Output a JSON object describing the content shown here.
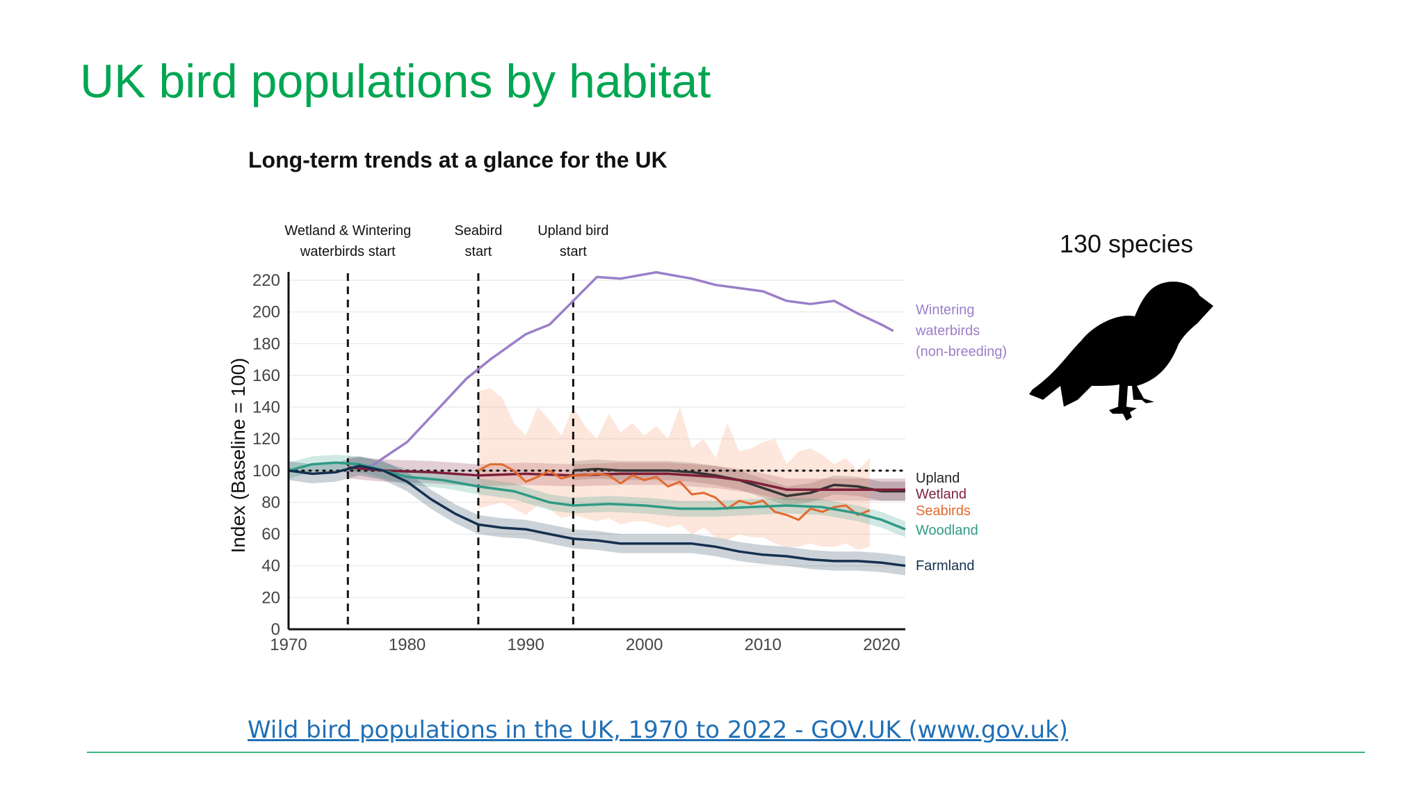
{
  "slide": {
    "title": "UK bird populations by habitat",
    "species_count": "130 species",
    "source_link": "Wild bird populations in the UK, 1970 to 2022 - GOV.UK (www.gov.uk)"
  },
  "colors": {
    "title": "#00a651",
    "link": "#1f6fb5",
    "rule": "#3fb37f"
  },
  "icons": [
    "bird-silhouette-icon"
  ],
  "chart_data": {
    "type": "line",
    "title": "Long-term trends at a glance for the UK",
    "xlabel": "",
    "ylabel": "Index (Baseline = 100)",
    "xlim": [
      1970,
      2022
    ],
    "ylim": [
      0,
      220
    ],
    "xticks": [
      1970,
      1980,
      1990,
      2000,
      2010,
      2020
    ],
    "yticks": [
      0,
      20,
      40,
      60,
      80,
      100,
      120,
      140,
      160,
      180,
      200,
      220
    ],
    "grid": true,
    "baseline": 100,
    "markers": [
      {
        "x": 1975,
        "label": [
          "Wetland & Wintering",
          "waterbirds start"
        ]
      },
      {
        "x": 1986,
        "label": [
          "Seabird",
          "start"
        ]
      },
      {
        "x": 1994,
        "label": [
          "Upland bird",
          "start"
        ]
      }
    ],
    "series": [
      {
        "name": "Wintering waterbirds (non-breeding)",
        "label": [
          "Wintering",
          "waterbirds",
          "(non-breeding)"
        ],
        "color": "#9b7fc9",
        "x": [
          1975,
          1977,
          1980,
          1983,
          1985,
          1987,
          1990,
          1992,
          1994,
          1996,
          1998,
          2001,
          2004,
          2006,
          2008,
          2010,
          2012,
          2014,
          2016,
          2018,
          2020,
          2021
        ],
        "y": [
          101,
          103,
          118,
          142,
          158,
          170,
          186,
          192,
          207,
          222,
          221,
          225,
          221,
          217,
          215,
          213,
          207,
          205,
          207,
          199,
          192,
          188
        ]
      },
      {
        "name": "Upland",
        "label": [
          "Upland"
        ],
        "color": "#333333",
        "x": [
          1994,
          1996,
          1998,
          2000,
          2002,
          2004,
          2006,
          2008,
          2010,
          2012,
          2014,
          2016,
          2018,
          2020,
          2022
        ],
        "y": [
          100,
          101,
          100,
          100,
          100,
          99,
          97,
          94,
          89,
          84,
          86,
          91,
          90,
          87,
          87
        ],
        "band": [
          6,
          6
        ]
      },
      {
        "name": "Wetland",
        "label": [
          "Wetland"
        ],
        "color": "#7d1f3a",
        "x": [
          1975,
          1978,
          1982,
          1986,
          1990,
          1994,
          1998,
          2002,
          2006,
          2009,
          2012,
          2015,
          2018,
          2022
        ],
        "y": [
          102,
          100,
          99,
          97,
          98,
          97,
          98,
          98,
          96,
          93,
          88,
          88,
          88,
          88
        ],
        "band": [
          7,
          7
        ]
      },
      {
        "name": "Seabirds",
        "label": [
          "Seabirds"
        ],
        "color": "#e06a2e",
        "x": [
          1986,
          1987,
          1988,
          1989,
          1990,
          1991,
          1992,
          1993,
          1994,
          1995,
          1996,
          1997,
          1998,
          1999,
          2000,
          2001,
          2002,
          2003,
          2004,
          2005,
          2006,
          2007,
          2008,
          2009,
          2010,
          2011,
          2012,
          2013,
          2014,
          2015,
          2016,
          2017,
          2018,
          2019
        ],
        "y": [
          100,
          104,
          104,
          100,
          93,
          96,
          100,
          95,
          97,
          97,
          98,
          97,
          92,
          97,
          94,
          96,
          90,
          93,
          85,
          86,
          83,
          76,
          81,
          79,
          81,
          74,
          72,
          69,
          76,
          74,
          77,
          78,
          72,
          75
        ],
        "band_upper": [
          150,
          152,
          146,
          130,
          122,
          140,
          132,
          122,
          140,
          128,
          120,
          136,
          124,
          130,
          122,
          128,
          120,
          140,
          114,
          120,
          108,
          130,
          112,
          114,
          118,
          120,
          104,
          112,
          114,
          110,
          104,
          108,
          100,
          108
        ],
        "band_lower": [
          76,
          78,
          80,
          76,
          72,
          78,
          76,
          70,
          72,
          70,
          68,
          70,
          66,
          68,
          68,
          66,
          64,
          66,
          60,
          64,
          58,
          56,
          60,
          58,
          58,
          54,
          52,
          52,
          54,
          52,
          52,
          54,
          50,
          52
        ]
      },
      {
        "name": "Woodland",
        "label": [
          "Woodland"
        ],
        "color": "#2f9a86",
        "x": [
          1970,
          1972,
          1974,
          1976,
          1978,
          1980,
          1983,
          1986,
          1989,
          1992,
          1994,
          1997,
          2000,
          2003,
          2006,
          2009,
          2012,
          2015,
          2018,
          2020,
          2022
        ],
        "y": [
          100,
          104,
          105,
          104,
          100,
          96,
          94,
          90,
          87,
          80,
          78,
          79,
          78,
          76,
          76,
          77,
          78,
          77,
          73,
          69,
          63
        ],
        "band": [
          5,
          5
        ]
      },
      {
        "name": "Farmland",
        "label": [
          "Farmland"
        ],
        "color": "#14304f",
        "x": [
          1970,
          1972,
          1974,
          1976,
          1978,
          1980,
          1982,
          1984,
          1986,
          1988,
          1990,
          1992,
          1994,
          1996,
          1998,
          2000,
          2002,
          2004,
          2006,
          2008,
          2010,
          2012,
          2014,
          2016,
          2018,
          2020,
          2022
        ],
        "y": [
          100,
          98,
          99,
          103,
          100,
          93,
          82,
          73,
          66,
          64,
          63,
          60,
          57,
          56,
          54,
          54,
          54,
          54,
          52,
          49,
          47,
          46,
          44,
          43,
          43,
          42,
          40
        ],
        "band": [
          6,
          6
        ]
      }
    ]
  }
}
